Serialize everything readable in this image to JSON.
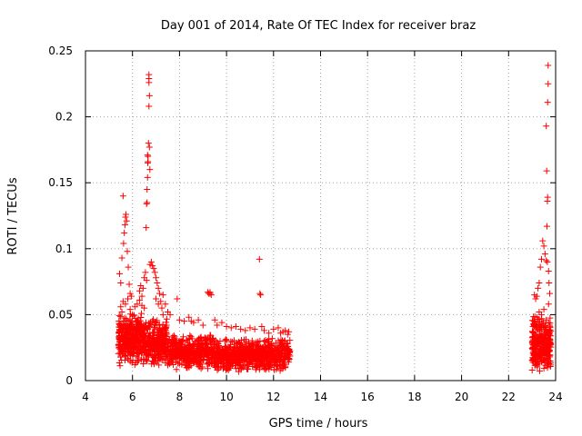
{
  "colors": {
    "series": "#ff0000",
    "axis": "#000000",
    "grid": "#a0a0a0",
    "background": "#ffffff"
  },
  "chart_data": {
    "type": "scatter",
    "title": "Day 001 of 2014, Rate Of TEC Index for receiver braz",
    "xlabel": "GPS time / hours",
    "ylabel": "ROTI / TECUs",
    "xlim": [
      4,
      24
    ],
    "ylim": [
      0,
      0.25
    ],
    "xticks": [
      4,
      6,
      8,
      10,
      12,
      14,
      16,
      18,
      20,
      22,
      24
    ],
    "xtick_labels": [
      "4",
      "6",
      "8",
      "10",
      "12",
      "14",
      "16",
      "18",
      "20",
      "22",
      "24"
    ],
    "yticks": [
      0,
      0.05,
      0.1,
      0.15,
      0.2,
      0.25
    ],
    "ytick_labels": [
      "0",
      "0.05",
      "0.1",
      "0.15",
      "0.2",
      "0.25"
    ],
    "grid": true,
    "legend": "none",
    "marker": "plus",
    "series": [
      {
        "name": "ROTI",
        "points": [
          [
            5.45,
            0.081
          ],
          [
            5.5,
            0.074
          ],
          [
            5.55,
            0.093
          ],
          [
            5.6,
            0.14
          ],
          [
            5.62,
            0.104
          ],
          [
            5.65,
            0.112
          ],
          [
            5.68,
            0.118
          ],
          [
            5.7,
            0.124
          ],
          [
            5.72,
            0.126
          ],
          [
            5.75,
            0.121
          ],
          [
            5.78,
            0.098
          ],
          [
            5.82,
            0.086
          ],
          [
            5.86,
            0.073
          ],
          [
            5.9,
            0.066
          ],
          [
            5.95,
            0.064
          ],
          [
            5.5,
            0.056
          ],
          [
            5.55,
            0.052
          ],
          [
            5.6,
            0.06
          ],
          [
            5.7,
            0.058
          ],
          [
            5.8,
            0.062
          ],
          [
            5.9,
            0.054
          ],
          [
            6.0,
            0.05
          ],
          [
            6.1,
            0.056
          ],
          [
            6.2,
            0.058
          ],
          [
            6.3,
            0.061
          ],
          [
            6.4,
            0.057
          ],
          [
            6.5,
            0.055
          ],
          [
            6.3,
            0.068
          ],
          [
            6.35,
            0.072
          ],
          [
            6.4,
            0.064
          ],
          [
            6.45,
            0.07
          ],
          [
            6.5,
            0.078
          ],
          [
            6.55,
            0.082
          ],
          [
            6.6,
            0.076
          ],
          [
            6.58,
            0.116
          ],
          [
            6.6,
            0.134
          ],
          [
            6.62,
            0.145
          ],
          [
            6.64,
            0.154
          ],
          [
            6.65,
            0.165
          ],
          [
            6.66,
            0.17
          ],
          [
            6.68,
            0.18
          ],
          [
            6.7,
            0.208
          ],
          [
            6.72,
            0.216
          ],
          [
            6.7,
            0.226
          ],
          [
            6.7,
            0.229
          ],
          [
            6.7,
            0.232
          ],
          [
            6.62,
            0.135
          ],
          [
            6.72,
            0.177
          ],
          [
            6.74,
            0.16
          ],
          [
            6.66,
            0.166
          ],
          [
            6.64,
            0.171
          ],
          [
            6.75,
            0.088
          ],
          [
            6.8,
            0.09
          ],
          [
            6.85,
            0.087
          ],
          [
            6.9,
            0.085
          ],
          [
            6.95,
            0.082
          ],
          [
            7.0,
            0.078
          ],
          [
            7.05,
            0.074
          ],
          [
            7.1,
            0.07
          ],
          [
            7.15,
            0.066
          ],
          [
            7.2,
            0.06
          ],
          [
            7.25,
            0.055
          ],
          [
            7.3,
            0.05
          ],
          [
            7.0,
            0.062
          ],
          [
            7.1,
            0.058
          ],
          [
            7.3,
            0.065
          ],
          [
            7.4,
            0.058
          ],
          [
            7.5,
            0.052
          ],
          [
            7.6,
            0.05
          ],
          [
            7.9,
            0.062
          ],
          [
            8.0,
            0.046
          ],
          [
            8.2,
            0.045
          ],
          [
            8.4,
            0.048
          ],
          [
            8.5,
            0.045
          ],
          [
            8.6,
            0.044
          ],
          [
            8.8,
            0.046
          ],
          [
            9.0,
            0.042
          ],
          [
            9.2,
            0.067
          ],
          [
            9.25,
            0.066
          ],
          [
            9.3,
            0.066
          ],
          [
            9.35,
            0.065
          ],
          [
            9.3,
            0.067
          ],
          [
            9.5,
            0.046
          ],
          [
            9.6,
            0.042
          ],
          [
            9.8,
            0.044
          ],
          [
            10.0,
            0.041
          ],
          [
            10.2,
            0.04
          ],
          [
            10.4,
            0.041
          ],
          [
            10.6,
            0.039
          ],
          [
            10.8,
            0.038
          ],
          [
            11.0,
            0.04
          ],
          [
            11.2,
            0.039
          ],
          [
            11.4,
            0.092
          ],
          [
            11.45,
            0.065
          ],
          [
            11.42,
            0.066
          ],
          [
            11.5,
            0.041
          ],
          [
            11.6,
            0.038
          ],
          [
            11.8,
            0.036
          ],
          [
            12.0,
            0.039
          ],
          [
            12.2,
            0.04
          ],
          [
            12.3,
            0.036
          ],
          [
            12.4,
            0.037
          ],
          [
            12.5,
            0.038
          ],
          [
            12.6,
            0.035
          ],
          [
            12.65,
            0.037
          ],
          [
            23.1,
            0.065
          ],
          [
            23.15,
            0.062
          ],
          [
            23.2,
            0.064
          ],
          [
            23.25,
            0.07
          ],
          [
            23.3,
            0.074
          ],
          [
            23.35,
            0.086
          ],
          [
            23.4,
            0.092
          ],
          [
            23.45,
            0.106
          ],
          [
            23.5,
            0.102
          ],
          [
            23.55,
            0.096
          ],
          [
            23.6,
            0.091
          ],
          [
            23.65,
            0.09
          ],
          [
            23.63,
            0.117
          ],
          [
            23.65,
            0.136
          ],
          [
            23.66,
            0.139
          ],
          [
            23.62,
            0.159
          ],
          [
            23.6,
            0.193
          ],
          [
            23.66,
            0.211
          ],
          [
            23.68,
            0.225
          ],
          [
            23.68,
            0.239
          ],
          [
            23.7,
            0.083
          ],
          [
            23.72,
            0.074
          ],
          [
            23.75,
            0.066
          ],
          [
            23.7,
            0.058
          ],
          [
            23.5,
            0.054
          ],
          [
            23.3,
            0.052
          ],
          [
            23.1,
            0.045
          ],
          [
            23.2,
            0.048
          ],
          [
            23.4,
            0.05
          ],
          [
            23.6,
            0.046
          ],
          [
            23.7,
            0.044
          ],
          [
            23.75,
            0.042
          ]
        ],
        "dense_bands": [
          {
            "x_range": [
              5.4,
              6.4
            ],
            "y_range": [
              0.01,
              0.052
            ],
            "count": 340,
            "seed": 11
          },
          {
            "x_range": [
              6.4,
              7.5
            ],
            "y_range": [
              0.01,
              0.048
            ],
            "count": 320,
            "seed": 23
          },
          {
            "x_range": [
              7.5,
              9.5
            ],
            "y_range": [
              0.008,
              0.036
            ],
            "count": 420,
            "seed": 37
          },
          {
            "x_range": [
              9.5,
              11.5
            ],
            "y_range": [
              0.006,
              0.032
            ],
            "count": 420,
            "seed": 41
          },
          {
            "x_range": [
              11.5,
              12.7
            ],
            "y_range": [
              0.006,
              0.034
            ],
            "count": 260,
            "seed": 53
          },
          {
            "x_range": [
              23.0,
              23.8
            ],
            "y_range": [
              0.006,
              0.05
            ],
            "count": 300,
            "seed": 67
          }
        ]
      }
    ]
  }
}
